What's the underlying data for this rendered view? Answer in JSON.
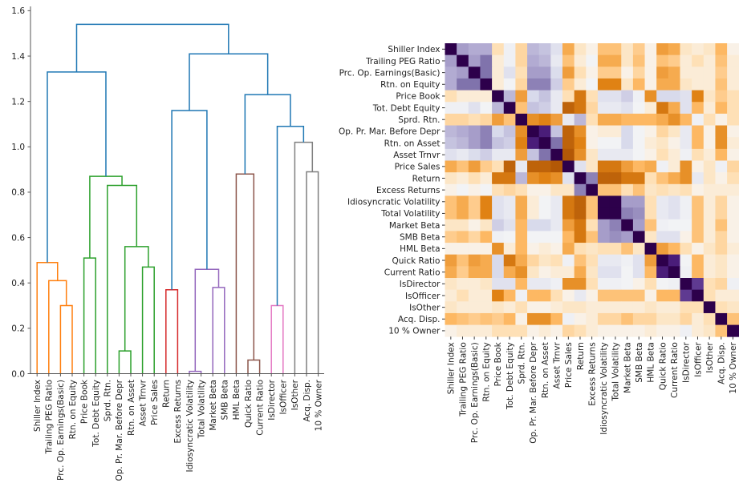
{
  "chart_data": [
    {
      "type": "dendrogram",
      "title": "",
      "xlabel": "",
      "ylabel": "",
      "ylim": [
        0.0,
        1.6
      ],
      "yticks": [
        0.0,
        0.2,
        0.4,
        0.6,
        0.8,
        1.0,
        1.2,
        1.4,
        1.6
      ],
      "ytick_labels": [
        "0.0",
        "0.2",
        "0.4",
        "0.6",
        "0.8",
        "1.0",
        "1.2",
        "1.4",
        "1.6"
      ],
      "grid": false,
      "leaves": [
        "Shiller Index",
        "Trailing PEG Ratio",
        "Prc. Op. Earnings(Basic)",
        "Rtn. on Equity",
        "Price Book",
        "Tot. Debt Equity",
        "Sprd. Rtn.",
        "Op. Pr. Mar. Before Depr",
        "Rtn. on Asset",
        "Asset Trnvr",
        "Price Sales",
        "Return",
        "Excess Returns",
        "Idiosyncratic Volatility",
        "Total Volatility",
        "Market Beta",
        "SMB Beta",
        "HML Beta",
        "Quick Ratio",
        "Current Ratio",
        "IsDirector",
        "IsOfficer",
        "IsOther",
        "Acq. Disp.",
        "10 % Owner"
      ],
      "colors": {
        "above": "#1f77b4",
        "orange": "#ff7f0e",
        "green": "#2ca02c",
        "red": "#d62728",
        "purple": "#9467bd",
        "brown": "#8c564b",
        "pink": "#e377c2",
        "gray": "#7f7f7f"
      },
      "links": [
        {
          "id": "c1",
          "left": "L2",
          "right": "L3",
          "height": 0.3,
          "color": "orange"
        },
        {
          "id": "c2",
          "left": "L1",
          "right": "c1",
          "height": 0.41,
          "color": "orange"
        },
        {
          "id": "c3",
          "left": "L0",
          "right": "c2",
          "height": 0.49,
          "color": "orange"
        },
        {
          "id": "c4",
          "left": "L4",
          "right": "L5",
          "height": 0.51,
          "color": "green"
        },
        {
          "id": "c5",
          "left": "L7",
          "right": "L8",
          "height": 0.1,
          "color": "green"
        },
        {
          "id": "c6",
          "left": "L9",
          "right": "L10",
          "height": 0.47,
          "color": "green"
        },
        {
          "id": "c7",
          "left": "c5",
          "right": "c6",
          "height": 0.56,
          "color": "green"
        },
        {
          "id": "c8",
          "left": "L6",
          "right": "c7",
          "height": 0.83,
          "color": "green"
        },
        {
          "id": "c9",
          "left": "c4",
          "right": "c8",
          "height": 0.87,
          "color": "green"
        },
        {
          "id": "c10",
          "left": "c3",
          "right": "c9",
          "height": 1.33,
          "color": "above"
        },
        {
          "id": "c11",
          "left": "L11",
          "right": "L12",
          "height": 0.37,
          "color": "red"
        },
        {
          "id": "c12",
          "left": "L13",
          "right": "L14",
          "height": 0.01,
          "color": "purple"
        },
        {
          "id": "c13",
          "left": "L15",
          "right": "L16",
          "height": 0.38,
          "color": "purple"
        },
        {
          "id": "c14",
          "left": "c12",
          "right": "c13",
          "height": 0.46,
          "color": "purple"
        },
        {
          "id": "c15",
          "left": "c11",
          "right": "c14",
          "height": 1.16,
          "color": "above"
        },
        {
          "id": "c16",
          "left": "L18",
          "right": "L19",
          "height": 0.06,
          "color": "brown"
        },
        {
          "id": "c17",
          "left": "L17",
          "right": "c16",
          "height": 0.88,
          "color": "brown"
        },
        {
          "id": "c18",
          "left": "L20",
          "right": "L21",
          "height": 0.3,
          "color": "pink"
        },
        {
          "id": "c19",
          "left": "L23",
          "right": "L24",
          "height": 0.89,
          "color": "gray"
        },
        {
          "id": "c20",
          "left": "L22",
          "right": "c19",
          "height": 1.02,
          "color": "gray"
        },
        {
          "id": "c21",
          "left": "c18",
          "right": "c20",
          "height": 1.09,
          "color": "above"
        },
        {
          "id": "c22",
          "left": "c17",
          "right": "c21",
          "height": 1.23,
          "color": "above"
        },
        {
          "id": "c23",
          "left": "c15",
          "right": "c22",
          "height": 1.41,
          "color": "above"
        },
        {
          "id": "c24",
          "left": "c10",
          "right": "c23",
          "height": 1.54,
          "color": "above"
        }
      ]
    },
    {
      "type": "heatmap",
      "title": "",
      "colormap": "PuOr (orange = negative, white = 0, dark purple = +1)",
      "vmin": -1,
      "vmax": 1,
      "row_labels": [
        "Shiller Index",
        "Trailing PEG Ratio",
        "Prc. Op. Earnings(Basic)",
        "Rtn. on Equity",
        "Price Book",
        "Tot. Debt Equity",
        "Sprd. Rtn.",
        "Op. Pr. Mar. Before Depr",
        "Rtn. on Asset",
        "Asset Trnvr",
        "Price Sales",
        "Return",
        "Excess Returns",
        "Idiosyncratic Volatility",
        "Total Volatility",
        "Market Beta",
        "SMB Beta",
        "HML Beta",
        "Quick Ratio",
        "Current Ratio",
        "IsDirector",
        "IsOfficer",
        "IsOther",
        "Acq. Disp.",
        "10 % Owner"
      ],
      "col_labels": [
        "Shiller Index",
        "Trailing PEG Ratio",
        "Prc. Op. Earnings(Basic)",
        "Rtn. on Equity",
        "Price Book",
        "Tot. Debt Equity",
        "Sprd. Rtn.",
        "Op. Pr. Mar. Before Depr",
        "Rtn. on Asset",
        "Asset Trnvr",
        "Price Sales",
        "Return",
        "Excess Returns",
        "Idiosyncratic Volatility",
        "Total Volatility",
        "Market Beta",
        "SMB Beta",
        "HML Beta",
        "Quick Ratio",
        "Current Ratio",
        "IsDirector",
        "IsOfficer",
        "IsOther",
        "Acq. Disp.",
        "10 % Owner"
      ],
      "values": [
        [
          1.0,
          0.45,
          0.4,
          0.4,
          -0.2,
          0.05,
          -0.25,
          0.35,
          0.3,
          0.15,
          -0.45,
          -0.15,
          -0.05,
          -0.35,
          -0.35,
          -0.15,
          -0.3,
          -0.05,
          -0.5,
          -0.45,
          -0.15,
          -0.1,
          -0.15,
          -0.4,
          -0.05
        ],
        [
          0.45,
          1.0,
          0.45,
          0.6,
          -0.1,
          0.05,
          -0.25,
          0.4,
          0.35,
          0.1,
          -0.35,
          -0.1,
          0.03,
          -0.45,
          -0.45,
          -0.15,
          -0.35,
          -0.05,
          -0.35,
          -0.3,
          -0.1,
          -0.2,
          -0.1,
          -0.35,
          -0.1
        ],
        [
          0.4,
          0.45,
          1.0,
          0.6,
          -0.1,
          0.15,
          -0.2,
          0.45,
          0.45,
          0.18,
          -0.5,
          -0.2,
          -0.05,
          -0.3,
          -0.3,
          -0.05,
          -0.25,
          -0.05,
          -0.5,
          -0.45,
          -0.1,
          -0.1,
          -0.1,
          -0.3,
          -0.1
        ],
        [
          0.4,
          0.6,
          0.6,
          1.0,
          -0.1,
          0.03,
          -0.25,
          0.55,
          0.55,
          0.25,
          -0.3,
          -0.1,
          0.03,
          -0.6,
          -0.6,
          -0.15,
          -0.4,
          -0.05,
          -0.45,
          -0.45,
          -0.15,
          -0.1,
          -0.1,
          -0.35,
          -0.1
        ],
        [
          -0.2,
          -0.1,
          -0.1,
          -0.1,
          1.0,
          0.35,
          -0.5,
          0.2,
          0.3,
          0.1,
          -0.2,
          -0.65,
          -0.2,
          0.15,
          0.15,
          0.25,
          0.05,
          -0.55,
          0.2,
          0.2,
          0.15,
          -0.6,
          -0.15,
          -0.3,
          -0.2
        ],
        [
          0.05,
          0.05,
          0.15,
          0.03,
          0.35,
          1.0,
          -0.35,
          0.3,
          0.25,
          0.1,
          -0.75,
          -0.65,
          -0.25,
          0.1,
          0.1,
          0.15,
          0.03,
          -0.1,
          -0.65,
          -0.45,
          0.15,
          -0.4,
          -0.1,
          -0.4,
          -0.2
        ],
        [
          -0.25,
          -0.25,
          -0.2,
          -0.25,
          -0.5,
          -0.35,
          1.0,
          -0.55,
          -0.6,
          -0.5,
          0.1,
          0.35,
          -0.2,
          -0.45,
          -0.45,
          -0.4,
          -0.4,
          -0.4,
          -0.45,
          -0.55,
          -0.4,
          0.05,
          -0.2,
          -0.05,
          -0.2
        ],
        [
          0.35,
          0.4,
          0.45,
          0.55,
          0.2,
          0.3,
          -0.55,
          1.0,
          0.85,
          0.3,
          -0.75,
          -0.55,
          -0.05,
          -0.1,
          -0.1,
          0.2,
          0.03,
          -0.05,
          -0.25,
          -0.15,
          0.1,
          -0.4,
          -0.05,
          -0.55,
          -0.05
        ],
        [
          0.3,
          0.35,
          0.45,
          0.55,
          0.3,
          0.25,
          -0.6,
          0.85,
          1.0,
          0.6,
          -0.75,
          -0.6,
          -0.05,
          0.03,
          0.03,
          0.2,
          0.03,
          -0.1,
          -0.15,
          -0.05,
          0.1,
          -0.4,
          -0.05,
          -0.55,
          -0.1
        ],
        [
          0.15,
          0.1,
          0.18,
          0.25,
          0.1,
          0.1,
          -0.5,
          0.3,
          0.6,
          1.0,
          -0.8,
          -0.55,
          -0.15,
          0.1,
          0.1,
          0.1,
          0.03,
          -0.05,
          -0.2,
          -0.1,
          0.05,
          -0.2,
          -0.1,
          -0.4,
          -0.05
        ],
        [
          -0.45,
          -0.35,
          -0.5,
          -0.3,
          -0.2,
          -0.75,
          0.1,
          -0.75,
          -0.75,
          -0.8,
          1.0,
          0.15,
          -0.15,
          -0.65,
          -0.65,
          -0.5,
          -0.4,
          -0.45,
          0.05,
          -0.1,
          -0.55,
          -0.05,
          -0.15,
          0.05,
          -0.25
        ],
        [
          -0.15,
          -0.1,
          -0.2,
          -0.1,
          -0.65,
          -0.65,
          0.35,
          -0.55,
          -0.6,
          -0.55,
          0.15,
          1.0,
          0.55,
          -0.75,
          -0.75,
          -0.65,
          -0.65,
          -0.2,
          -0.35,
          -0.45,
          -0.55,
          0.1,
          -0.15,
          -0.05,
          -0.2
        ],
        [
          -0.05,
          0.03,
          -0.05,
          0.03,
          -0.2,
          -0.25,
          -0.2,
          -0.05,
          -0.05,
          -0.15,
          -0.15,
          0.55,
          1.0,
          -0.35,
          -0.35,
          -0.2,
          -0.35,
          -0.15,
          -0.2,
          -0.15,
          -0.2,
          -0.05,
          -0.1,
          -0.1,
          -0.1
        ],
        [
          -0.35,
          -0.45,
          -0.3,
          -0.6,
          0.15,
          0.1,
          -0.45,
          -0.1,
          0.03,
          0.1,
          -0.65,
          -0.75,
          -0.35,
          1.0,
          1.0,
          0.45,
          0.45,
          -0.2,
          0.1,
          0.15,
          0.05,
          -0.35,
          -0.1,
          -0.25,
          -0.05
        ],
        [
          -0.35,
          -0.45,
          -0.3,
          -0.6,
          0.15,
          0.1,
          -0.45,
          -0.1,
          0.03,
          0.1,
          -0.65,
          -0.75,
          -0.35,
          1.0,
          1.0,
          0.55,
          0.5,
          -0.2,
          0.1,
          0.15,
          0.05,
          -0.35,
          -0.1,
          -0.25,
          -0.05
        ],
        [
          -0.15,
          -0.15,
          -0.05,
          -0.15,
          0.25,
          0.15,
          -0.4,
          0.2,
          0.2,
          0.1,
          -0.5,
          -0.65,
          -0.2,
          0.45,
          0.55,
          1.0,
          0.45,
          -0.35,
          0.05,
          0.03,
          0.03,
          -0.35,
          -0.1,
          -0.35,
          -0.05
        ],
        [
          -0.3,
          -0.35,
          -0.25,
          -0.4,
          0.05,
          0.03,
          -0.4,
          0.03,
          0.03,
          0.03,
          -0.4,
          -0.65,
          -0.35,
          0.45,
          0.5,
          0.45,
          1.0,
          -0.15,
          0.15,
          0.15,
          -0.05,
          -0.35,
          -0.1,
          -0.25,
          -0.05
        ],
        [
          -0.05,
          -0.05,
          -0.05,
          -0.05,
          -0.55,
          -0.1,
          -0.4,
          -0.05,
          -0.1,
          -0.05,
          -0.45,
          -0.2,
          -0.15,
          -0.2,
          -0.2,
          -0.35,
          -0.15,
          1.0,
          -0.5,
          -0.4,
          -0.2,
          -0.05,
          -0.15,
          -0.25,
          -0.1
        ],
        [
          -0.5,
          -0.35,
          -0.5,
          -0.45,
          0.2,
          -0.65,
          -0.45,
          -0.25,
          -0.15,
          -0.2,
          0.05,
          -0.35,
          -0.2,
          0.1,
          0.1,
          0.05,
          0.15,
          -0.5,
          1.0,
          0.85,
          0.03,
          -0.4,
          -0.1,
          -0.15,
          -0.05
        ],
        [
          -0.45,
          -0.3,
          -0.45,
          -0.45,
          0.2,
          -0.45,
          -0.55,
          -0.15,
          -0.05,
          -0.1,
          -0.1,
          -0.45,
          -0.15,
          0.15,
          0.15,
          0.03,
          0.15,
          -0.4,
          0.85,
          1.0,
          0.05,
          -0.4,
          -0.1,
          -0.15,
          -0.05
        ],
        [
          -0.15,
          -0.1,
          -0.1,
          -0.15,
          0.15,
          0.15,
          -0.4,
          0.1,
          0.1,
          0.05,
          -0.55,
          -0.55,
          -0.2,
          0.05,
          0.05,
          0.03,
          -0.05,
          -0.2,
          0.03,
          0.05,
          1.0,
          0.75,
          -0.2,
          -0.25,
          0.05
        ],
        [
          -0.1,
          -0.2,
          -0.1,
          -0.1,
          -0.6,
          -0.4,
          0.05,
          -0.4,
          -0.4,
          -0.2,
          -0.05,
          0.1,
          -0.05,
          -0.35,
          -0.35,
          -0.35,
          -0.35,
          -0.05,
          -0.4,
          -0.4,
          0.75,
          1.0,
          -0.2,
          -0.1,
          -0.1
        ],
        [
          -0.15,
          -0.1,
          -0.1,
          -0.1,
          -0.15,
          -0.1,
          -0.2,
          -0.05,
          -0.05,
          -0.1,
          -0.15,
          -0.15,
          -0.1,
          -0.1,
          -0.1,
          -0.1,
          -0.1,
          -0.15,
          -0.1,
          -0.1,
          -0.2,
          -0.2,
          1.0,
          -0.2,
          -0.15
        ],
        [
          -0.4,
          -0.35,
          -0.3,
          -0.35,
          -0.3,
          -0.4,
          -0.05,
          -0.55,
          -0.55,
          -0.4,
          0.05,
          -0.05,
          -0.1,
          -0.25,
          -0.25,
          -0.35,
          -0.25,
          -0.25,
          -0.15,
          -0.15,
          -0.25,
          -0.1,
          -0.2,
          1.0,
          -0.35
        ],
        [
          -0.05,
          -0.1,
          -0.1,
          -0.1,
          -0.2,
          -0.2,
          -0.2,
          -0.05,
          -0.1,
          -0.05,
          -0.25,
          -0.2,
          -0.1,
          -0.05,
          -0.05,
          -0.05,
          -0.05,
          -0.1,
          -0.05,
          -0.05,
          0.05,
          -0.1,
          -0.15,
          -0.35,
          1.0
        ]
      ]
    }
  ]
}
